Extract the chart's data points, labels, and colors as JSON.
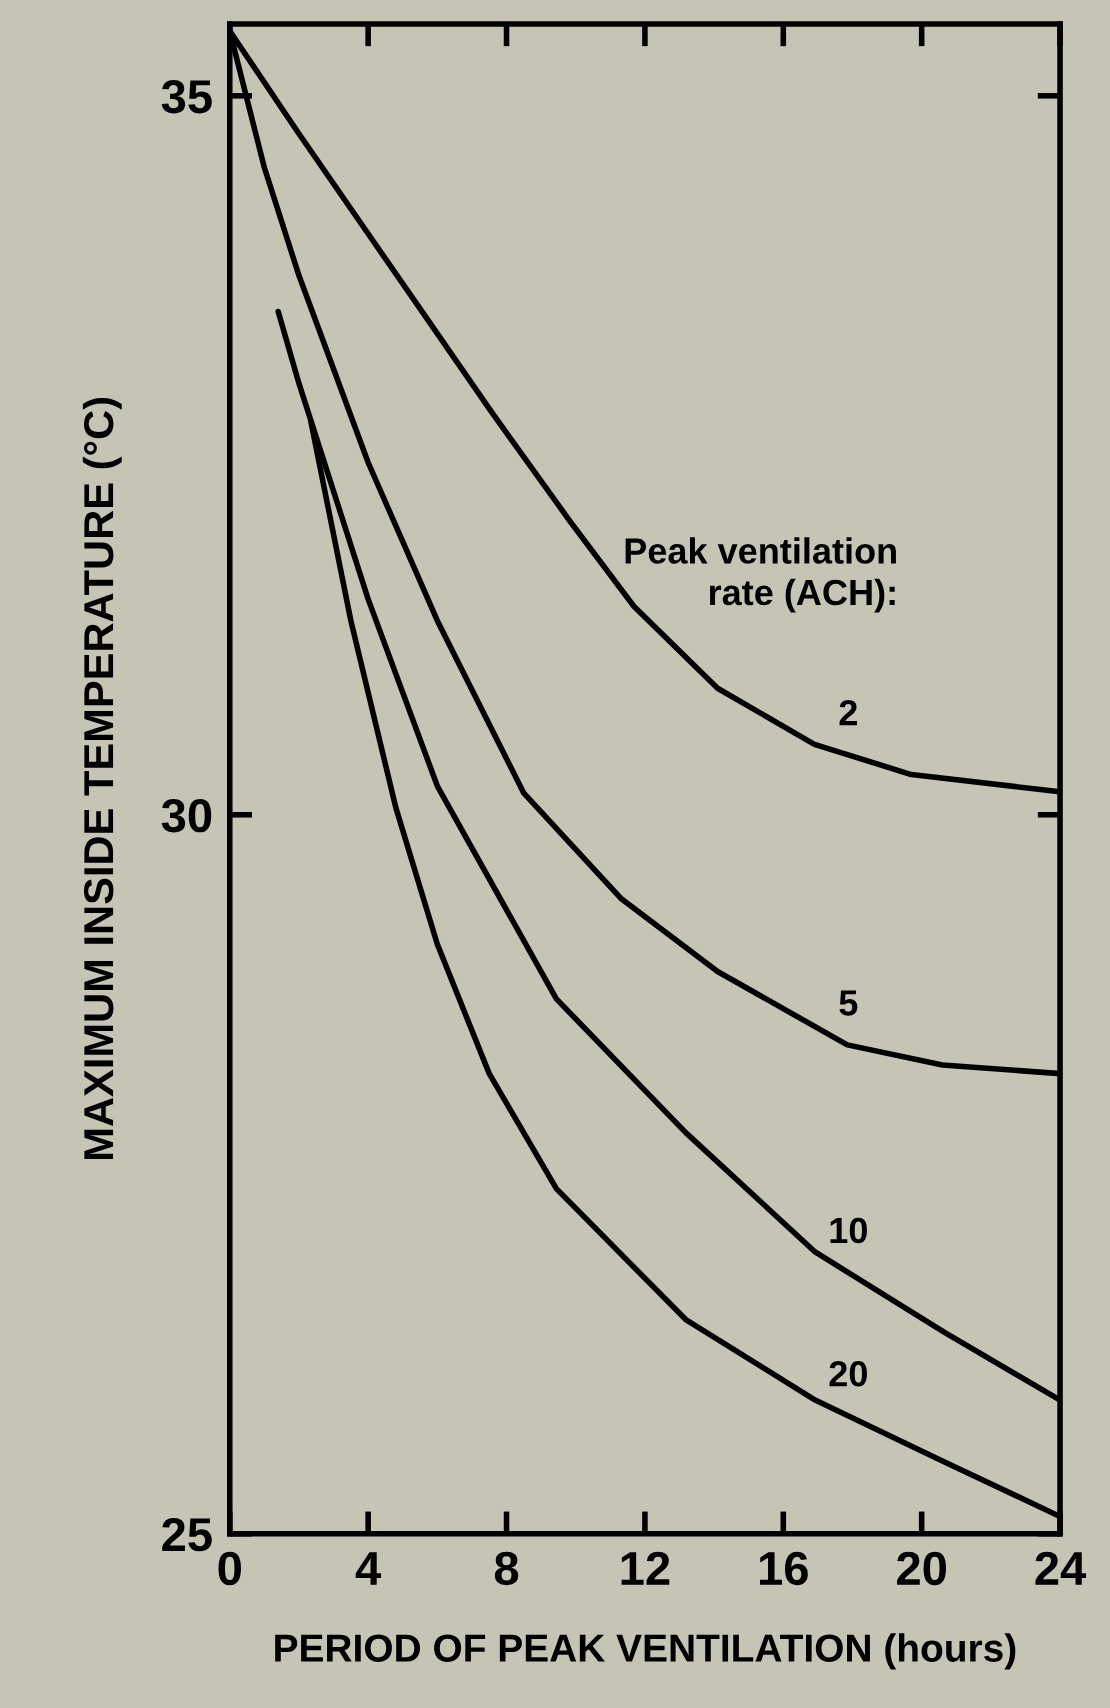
{
  "chart_data": {
    "type": "line",
    "xlabel": "PERIOD OF PEAK VENTILATION (hours)",
    "ylabel": "MAXIMUM INSIDE TEMPERATURE (°C)",
    "annotations": [
      "Peak ventilation\nrate (ACH):"
    ],
    "xlim": [
      0,
      24
    ],
    "xticks": [
      0,
      4,
      8,
      12,
      16,
      20,
      24
    ],
    "ylim": [
      25,
      35.5
    ],
    "yticks": [
      25,
      30,
      35
    ],
    "grid": false,
    "legend": false,
    "marker": "none",
    "line_style": "solid",
    "series": [
      {
        "name": "2",
        "color": "#000000",
        "x": [
          0,
          1.96,
          3.83,
          5.7,
          7.57,
          9.81,
          11.68,
          14.1,
          16.9,
          19.7,
          24
        ],
        "values": [
          35.45,
          34.75,
          34.1,
          33.45,
          32.8,
          32.05,
          31.45,
          30.88,
          30.49,
          30.28,
          30.16
        ]
      },
      {
        "name": "5",
        "color": "#000000",
        "x": [
          0,
          1,
          2,
          4,
          6,
          8.5,
          11.3,
          14.1,
          17.85,
          20.6,
          24
        ],
        "values": [
          35.45,
          34.5,
          33.75,
          32.45,
          31.35,
          30.15,
          29.42,
          28.91,
          28.4,
          28.26,
          28.2
        ]
      },
      {
        "name": "10",
        "color": "#000000",
        "x": [
          1.4,
          2,
          4,
          6,
          9.44,
          13.18,
          16.92,
          20.66,
          24
        ],
        "values": [
          33.5,
          33.0,
          31.5,
          30.2,
          28.72,
          27.79,
          26.96,
          26.4,
          25.93
        ]
      },
      {
        "name": "20",
        "color": "#000000",
        "x": [
          2.34,
          3.5,
          4.8,
          6,
          7.5,
          9.44,
          13.18,
          16.92,
          20.66,
          24
        ],
        "values": [
          32.74,
          31.35,
          30.05,
          29.1,
          28.2,
          27.4,
          26.49,
          25.93,
          25.5,
          25.12
        ]
      }
    ]
  }
}
